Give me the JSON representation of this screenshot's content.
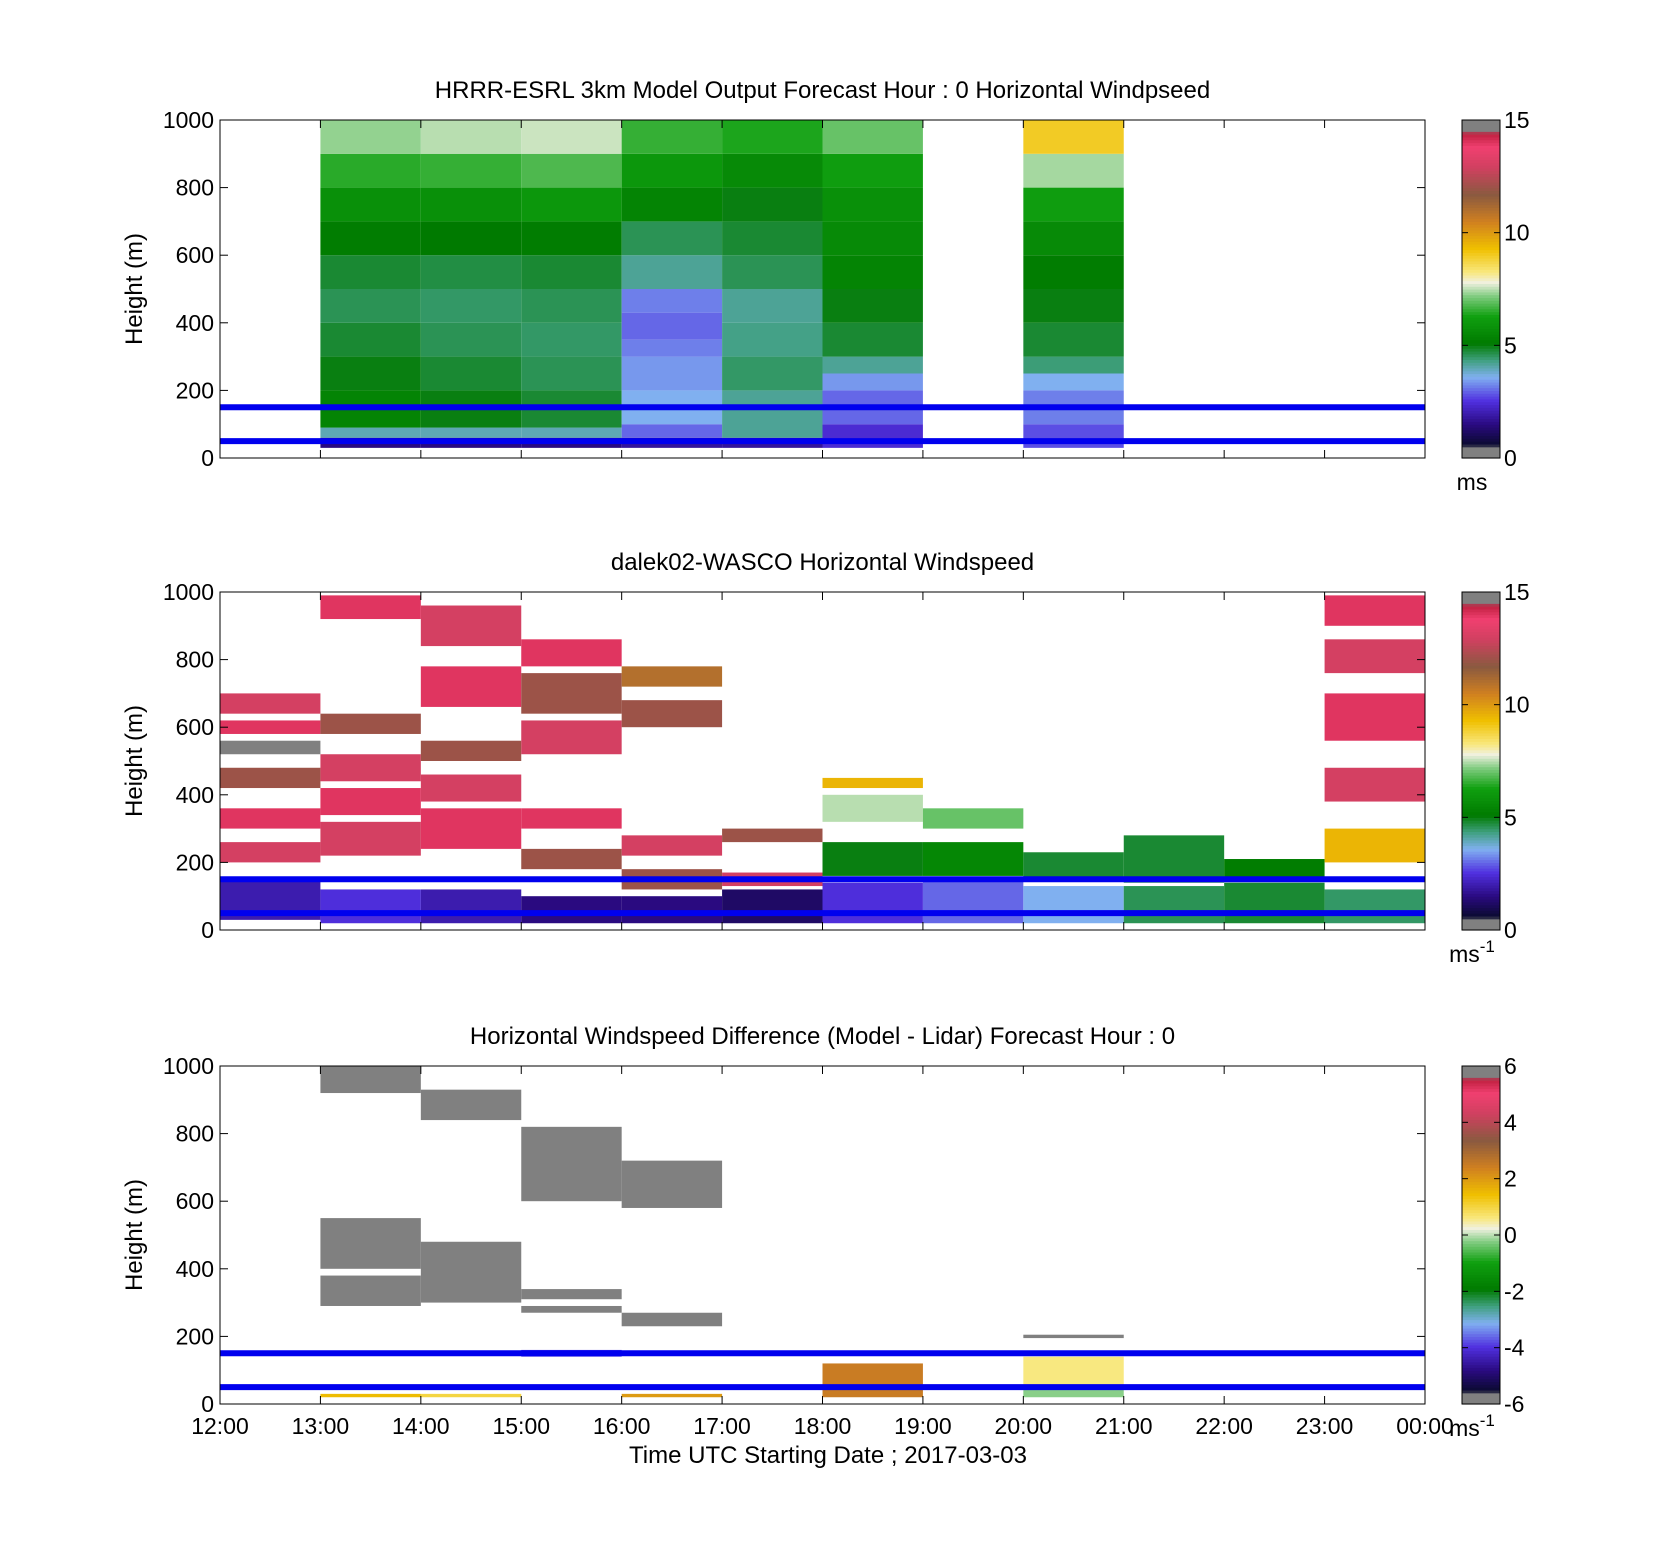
{
  "figure": {
    "xlabel": "Time UTC  Starting Date ; 2017-03-03",
    "x_tick_labels": [
      "12:00",
      "13:00",
      "14:00",
      "15:00",
      "16:00",
      "17:00",
      "18:00",
      "19:00",
      "20:00",
      "21:00",
      "22:00",
      "23:00",
      "00:00"
    ]
  },
  "chart_data": [
    {
      "type": "heatmap",
      "title": "HRRR-ESRL 3km Model Output   Forecast Hour : 0 Horizontal Windpseed",
      "ylabel": "Height (m)",
      "xlim": [
        12,
        24
      ],
      "ylim": [
        0,
        1000
      ],
      "yticks": [
        0,
        200,
        400,
        600,
        800,
        1000
      ],
      "colorbar": {
        "ticks": [
          0,
          5,
          10,
          15
        ],
        "range": [
          0,
          15
        ],
        "unit": "ms",
        "unit_sup": ""
      },
      "reference_lines": [
        50,
        150
      ],
      "columns": [
        {
          "t0": 13,
          "t1": 14,
          "cells": [
            [
              30,
              60,
              1.5
            ],
            [
              60,
              90,
              4.0
            ],
            [
              90,
              200,
              5.4
            ],
            [
              200,
              300,
              5.0
            ],
            [
              300,
              400,
              4.8
            ],
            [
              400,
              500,
              4.6
            ],
            [
              500,
              600,
              4.8
            ],
            [
              600,
              700,
              5.2
            ],
            [
              700,
              800,
              5.8
            ],
            [
              800,
              900,
              6.5
            ],
            [
              900,
              1000,
              7.3
            ]
          ]
        },
        {
          "t0": 14,
          "t1": 15,
          "cells": [
            [
              30,
              60,
              1.5
            ],
            [
              60,
              90,
              4.0
            ],
            [
              90,
              200,
              5.0
            ],
            [
              200,
              300,
              4.8
            ],
            [
              300,
              400,
              4.6
            ],
            [
              400,
              500,
              4.5
            ],
            [
              500,
              600,
              4.7
            ],
            [
              600,
              700,
              5.1
            ],
            [
              700,
              800,
              5.8
            ],
            [
              800,
              900,
              6.6
            ],
            [
              900,
              1000,
              7.5
            ]
          ]
        },
        {
          "t0": 15,
          "t1": 16,
          "cells": [
            [
              30,
              60,
              1.5
            ],
            [
              60,
              90,
              4.0
            ],
            [
              90,
              200,
              4.8
            ],
            [
              200,
              300,
              4.6
            ],
            [
              300,
              400,
              4.5
            ],
            [
              400,
              500,
              4.6
            ],
            [
              500,
              600,
              4.8
            ],
            [
              600,
              700,
              5.2
            ],
            [
              700,
              800,
              6.0
            ],
            [
              800,
              900,
              6.8
            ],
            [
              900,
              1000,
              7.6
            ]
          ]
        },
        {
          "t0": 16,
          "t1": 17,
          "cells": [
            [
              30,
              60,
              1.8
            ],
            [
              60,
              100,
              3.0
            ],
            [
              100,
              200,
              3.6
            ],
            [
              200,
              300,
              3.4
            ],
            [
              300,
              350,
              3.2
            ],
            [
              350,
              430,
              3.0
            ],
            [
              430,
              500,
              3.2
            ],
            [
              500,
              600,
              4.2
            ],
            [
              600,
              700,
              4.6
            ],
            [
              700,
              800,
              5.4
            ],
            [
              800,
              900,
              6.0
            ],
            [
              900,
              1000,
              6.6
            ]
          ]
        },
        {
          "t0": 17,
          "t1": 18,
          "cells": [
            [
              30,
              60,
              1.8
            ],
            [
              60,
              200,
              4.2
            ],
            [
              200,
              300,
              4.5
            ],
            [
              300,
              400,
              4.3
            ],
            [
              400,
              500,
              4.2
            ],
            [
              500,
              600,
              4.6
            ],
            [
              600,
              700,
              4.8
            ],
            [
              700,
              800,
              5.0
            ],
            [
              800,
              900,
              5.6
            ],
            [
              900,
              1000,
              6.4
            ]
          ]
        },
        {
          "t0": 18,
          "t1": 19,
          "cells": [
            [
              30,
              100,
              2.4
            ],
            [
              100,
              200,
              3.0
            ],
            [
              200,
              250,
              3.4
            ],
            [
              250,
              300,
              4.2
            ],
            [
              300,
              400,
              4.8
            ],
            [
              400,
              500,
              5.0
            ],
            [
              500,
              600,
              5.4
            ],
            [
              600,
              700,
              5.6
            ],
            [
              700,
              800,
              5.8
            ],
            [
              800,
              900,
              6.2
            ],
            [
              900,
              1000,
              7.0
            ]
          ]
        },
        {
          "t0": 20,
          "t1": 21,
          "cells": [
            [
              30,
              100,
              2.8
            ],
            [
              100,
              200,
              3.2
            ],
            [
              200,
              250,
              3.6
            ],
            [
              250,
              300,
              4.4
            ],
            [
              300,
              400,
              4.8
            ],
            [
              400,
              500,
              5.0
            ],
            [
              500,
              600,
              5.2
            ],
            [
              600,
              700,
              5.6
            ],
            [
              700,
              800,
              6.2
            ],
            [
              800,
              900,
              7.4
            ],
            [
              900,
              1000,
              9.0
            ]
          ]
        }
      ]
    },
    {
      "type": "heatmap",
      "title": "dalek02-WASCO  Horizontal Windspeed",
      "ylabel": "Height (m)",
      "xlim": [
        12,
        24
      ],
      "ylim": [
        0,
        1000
      ],
      "yticks": [
        0,
        200,
        400,
        600,
        800,
        1000
      ],
      "colorbar": {
        "ticks": [
          0,
          5,
          10,
          15
        ],
        "range": [
          0,
          15
        ],
        "unit": "ms",
        "unit_sup": "-1"
      },
      "reference_lines": [
        50,
        150
      ],
      "columns": [
        {
          "t0": 12,
          "t1": 13,
          "cells": [
            [
              30,
              150,
              2.0
            ],
            [
              200,
              260,
              13
            ],
            [
              300,
              360,
              14
            ],
            [
              420,
              480,
              12
            ],
            [
              520,
              560,
              15
            ],
            [
              580,
              620,
              14
            ],
            [
              640,
              700,
              13
            ]
          ]
        },
        {
          "t0": 13,
          "t1": 14,
          "cells": [
            [
              20,
              120,
              2.5
            ],
            [
              220,
              320,
              13
            ],
            [
              340,
              420,
              14
            ],
            [
              440,
              520,
              13
            ],
            [
              580,
              640,
              12
            ],
            [
              920,
              990,
              14
            ]
          ]
        },
        {
          "t0": 14,
          "t1": 15,
          "cells": [
            [
              20,
              120,
              2.0
            ],
            [
              240,
              360,
              14
            ],
            [
              380,
              460,
              13
            ],
            [
              500,
              560,
              12
            ],
            [
              660,
              780,
              14
            ],
            [
              840,
              960,
              13
            ]
          ]
        },
        {
          "t0": 15,
          "t1": 16,
          "cells": [
            [
              20,
              100,
              1.5
            ],
            [
              180,
              240,
              12
            ],
            [
              300,
              360,
              14
            ],
            [
              520,
              620,
              13
            ],
            [
              640,
              760,
              12
            ],
            [
              780,
              860,
              14
            ]
          ]
        },
        {
          "t0": 16,
          "t1": 17,
          "cells": [
            [
              20,
              100,
              1.5
            ],
            [
              120,
              180,
              12
            ],
            [
              220,
              280,
              13
            ],
            [
              600,
              680,
              12
            ],
            [
              720,
              780,
              11
            ]
          ]
        },
        {
          "t0": 17,
          "t1": 18,
          "cells": [
            [
              20,
              120,
              1.2
            ],
            [
              130,
              170,
              13
            ],
            [
              260,
              300,
              12
            ]
          ]
        },
        {
          "t0": 18,
          "t1": 19,
          "cells": [
            [
              20,
              140,
              2.5
            ],
            [
              160,
              260,
              5.0
            ],
            [
              320,
              400,
              7.5
            ],
            [
              420,
              450,
              9.5
            ]
          ]
        },
        {
          "t0": 19,
          "t1": 20,
          "cells": [
            [
              20,
              150,
              3.0
            ],
            [
              160,
              260,
              5.5
            ],
            [
              300,
              360,
              7.0
            ]
          ]
        },
        {
          "t0": 20,
          "t1": 21,
          "cells": [
            [
              20,
              130,
              3.6
            ],
            [
              150,
              230,
              4.8
            ]
          ]
        },
        {
          "t0": 21,
          "t1": 22,
          "cells": [
            [
              20,
              130,
              4.6
            ],
            [
              140,
              280,
              4.8
            ]
          ]
        },
        {
          "t0": 22,
          "t1": 23,
          "cells": [
            [
              20,
              140,
              4.8
            ],
            [
              150,
              210,
              5.2
            ]
          ]
        },
        {
          "t0": 23,
          "t1": 24,
          "cells": [
            [
              20,
              120,
              4.5
            ],
            [
              200,
              300,
              9.5
            ],
            [
              380,
              480,
              13
            ],
            [
              560,
              700,
              14
            ],
            [
              760,
              860,
              13
            ],
            [
              900,
              990,
              14
            ]
          ]
        }
      ]
    },
    {
      "type": "heatmap",
      "title": "Horizontal Windspeed Difference (Model - Lidar) Forecast Hour : 0",
      "ylabel": "Height (m)",
      "xlim": [
        12,
        24
      ],
      "ylim": [
        0,
        1000
      ],
      "yticks": [
        0,
        200,
        400,
        600,
        800,
        1000
      ],
      "colorbar": {
        "ticks": [
          -6,
          -4,
          -2,
          0,
          2,
          4,
          6
        ],
        "range": [
          -6,
          6
        ],
        "unit": "ms",
        "unit_sup": "-1"
      },
      "reference_lines": [
        50,
        150
      ],
      "columns": [
        {
          "t0": 13,
          "t1": 14,
          "cells": [
            [
              290,
              380,
              -7
            ],
            [
              400,
              550,
              -7
            ],
            [
              920,
              1000,
              -7
            ],
            [
              20,
              30,
              1.5
            ]
          ]
        },
        {
          "t0": 14,
          "t1": 15,
          "cells": [
            [
              300,
              480,
              -7
            ],
            [
              840,
              930,
              -7
            ],
            [
              20,
              30,
              1.0
            ]
          ]
        },
        {
          "t0": 15,
          "t1": 16,
          "cells": [
            [
              310,
              340,
              -7
            ],
            [
              600,
              820,
              -7
            ],
            [
              270,
              290,
              -7
            ],
            [
              140,
              160,
              -3.8
            ]
          ]
        },
        {
          "t0": 16,
          "t1": 17,
          "cells": [
            [
              230,
              270,
              -7
            ],
            [
              580,
              720,
              -7
            ],
            [
              20,
              30,
              2.0
            ]
          ]
        },
        {
          "t0": 18,
          "t1": 19,
          "cells": [
            [
              20,
              120,
              2.5
            ]
          ]
        },
        {
          "t0": 20,
          "t1": 21,
          "cells": [
            [
              195,
              205,
              -7
            ],
            [
              50,
              140,
              0.6
            ],
            [
              20,
              50,
              -0.2
            ]
          ]
        }
      ]
    }
  ],
  "colors": {
    "reference_line": "#0000ee",
    "axes": "#000000",
    "background": "#ffffff"
  }
}
